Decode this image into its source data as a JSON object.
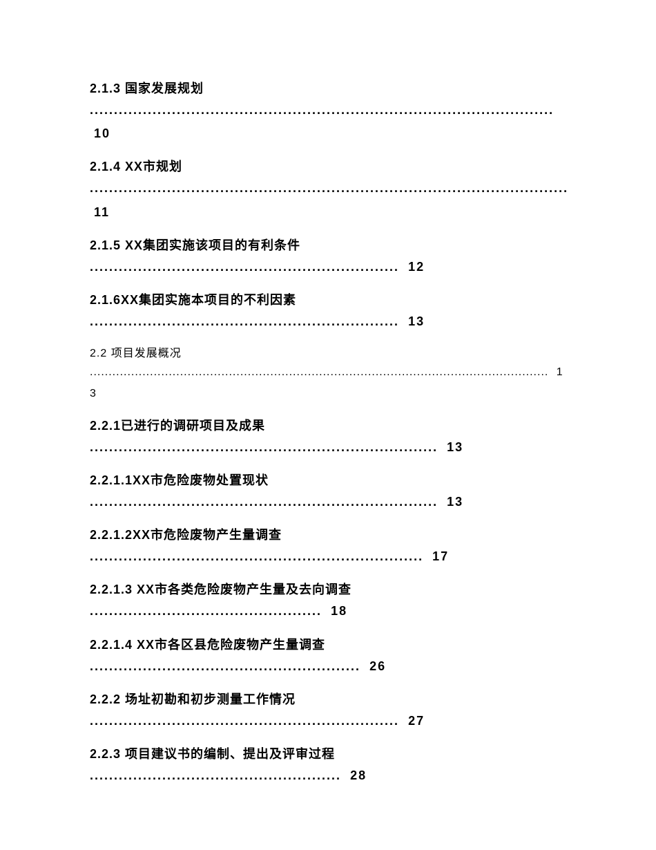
{
  "toc": {
    "entries": [
      {
        "title": "2.1.3 国家发展规划",
        "leader": "................................................................................................ ",
        "page": "10",
        "bold": true
      },
      {
        "title": "2.1.4 XX市规划",
        "leader": "....................................................................................................... ",
        "page": "11",
        "bold": true
      },
      {
        "title": "2.1.5 XX集团实施该项目的有利条件",
        "leader": "................................................................ ",
        "page": "12",
        "bold": true
      },
      {
        "title": "2.1.6XX集团实施本项目的不利因素",
        "leader": "................................................................ ",
        "page": "13",
        "bold": true
      },
      {
        "title": "2.2 项目发展概况",
        "leader": ".......................................................................................................................... ",
        "page": "13",
        "bold": false
      },
      {
        "title": "2.2.1已进行的调研项目及成果",
        "leader": "........................................................................ ",
        "page": "13",
        "bold": true
      },
      {
        "title": "2.2.1.1XX市危险废物处置现状",
        "leader": "........................................................................ ",
        "page": "13",
        "bold": true
      },
      {
        "title": "2.2.1.2XX市危险废物产生量调查",
        "leader": "..................................................................... ",
        "page": "17",
        "bold": true
      },
      {
        "title": "2.2.1.3 XX市各类危险废物产生量及去向调查",
        "leader": "................................................ ",
        "page": "18",
        "bold": true
      },
      {
        "title": "2.2.1.4 XX市各区县危险废物产生量调查",
        "leader": "........................................................ ",
        "page": "26",
        "bold": true
      },
      {
        "title": "2.2.2 场址初勘和初步测量工作情况",
        "leader": "................................................................ ",
        "page": "27",
        "bold": true
      },
      {
        "title": "2.2.3 项目建议书的编制、提出及评审过程",
        "leader": ".................................................... ",
        "page": "28",
        "bold": true
      }
    ]
  },
  "style": {
    "background_color": "#ffffff",
    "text_color": "#000000",
    "bold_fontsize": 18,
    "light_fontsize": 16,
    "font_family": "Microsoft YaHei"
  }
}
